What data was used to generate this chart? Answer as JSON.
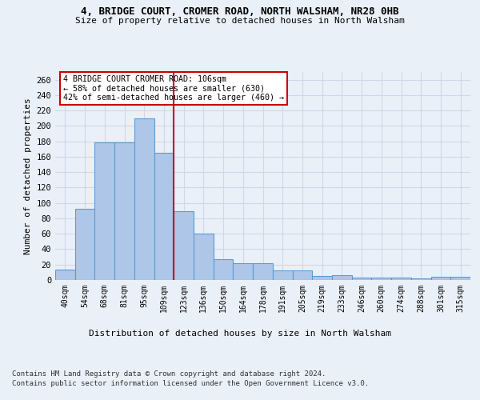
{
  "title_line1": "4, BRIDGE COURT, CROMER ROAD, NORTH WALSHAM, NR28 0HB",
  "title_line2": "Size of property relative to detached houses in North Walsham",
  "xlabel": "Distribution of detached houses by size in North Walsham",
  "ylabel": "Number of detached properties",
  "categories": [
    "40sqm",
    "54sqm",
    "68sqm",
    "81sqm",
    "95sqm",
    "109sqm",
    "123sqm",
    "136sqm",
    "150sqm",
    "164sqm",
    "178sqm",
    "191sqm",
    "205sqm",
    "219sqm",
    "233sqm",
    "246sqm",
    "260sqm",
    "274sqm",
    "288sqm",
    "301sqm",
    "315sqm"
  ],
  "values": [
    13,
    92,
    179,
    179,
    210,
    165,
    89,
    60,
    27,
    22,
    22,
    12,
    12,
    5,
    6,
    3,
    3,
    3,
    2,
    4,
    4
  ],
  "bar_color": "#aec6e8",
  "bar_edge_color": "#5b9bd5",
  "redline_x": 5.5,
  "annotation_text": "4 BRIDGE COURT CROMER ROAD: 106sqm\n← 58% of detached houses are smaller (630)\n42% of semi-detached houses are larger (460) →",
  "annotation_box_color": "#ffffff",
  "annotation_box_edge": "#cc0000",
  "redline_color": "#cc0000",
  "ylim": [
    0,
    270
  ],
  "yticks": [
    0,
    20,
    40,
    60,
    80,
    100,
    120,
    140,
    160,
    180,
    200,
    220,
    240,
    260
  ],
  "grid_color": "#d0d8e8",
  "footer1": "Contains HM Land Registry data © Crown copyright and database right 2024.",
  "footer2": "Contains public sector information licensed under the Open Government Licence v3.0.",
  "bg_color": "#eaf0f8"
}
